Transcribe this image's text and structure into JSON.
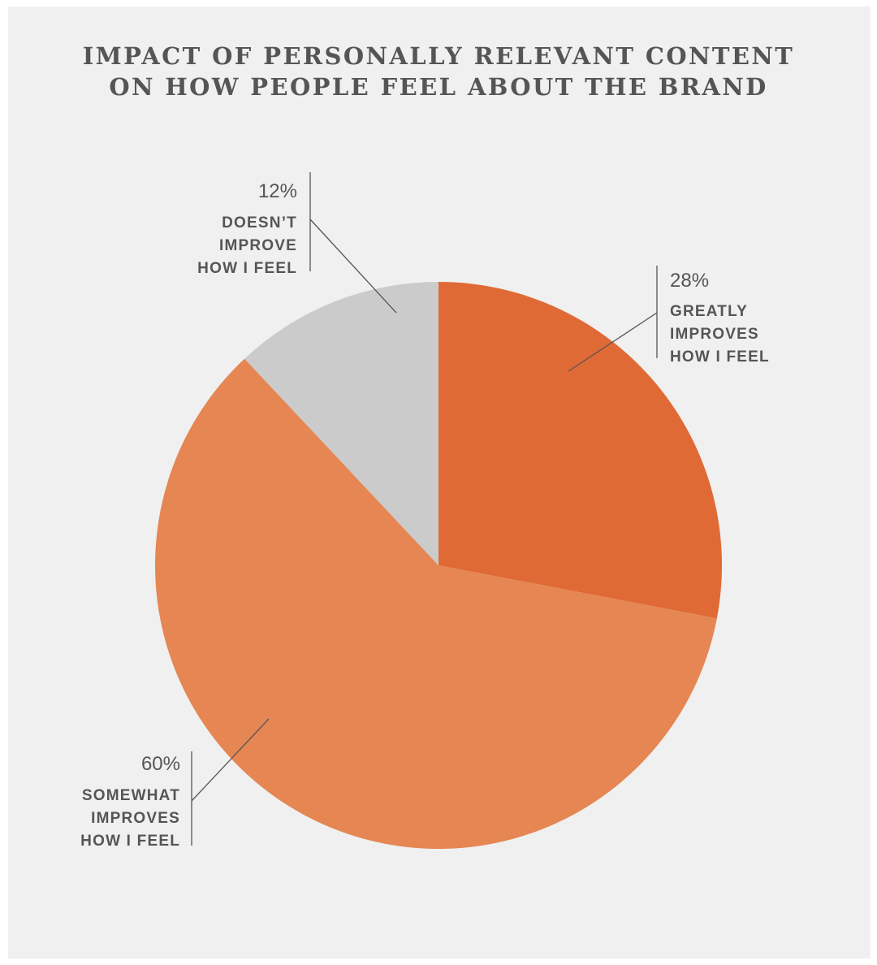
{
  "title_lines": [
    "IMPACT OF PERSONALLY RELEVANT CONTENT",
    "ON HOW PEOPLE FEEL ABOUT THE BRAND"
  ],
  "chart_data": {
    "type": "pie",
    "title": "IMPACT OF PERSONALLY RELEVANT CONTENT ON HOW PEOPLE FEEL ABOUT THE BRAND",
    "unit": "%",
    "slices": [
      {
        "label": "GREATLY IMPROVES HOW I FEEL",
        "label_lines": [
          "GREATLY",
          "IMPROVES",
          "HOW I FEEL"
        ],
        "value": 28,
        "value_label": "28%",
        "color": "#e06a35"
      },
      {
        "label": "SOMEWHAT IMPROVES HOW I FEEL",
        "label_lines": [
          "SOMEWHAT",
          "IMPROVES",
          "HOW I FEEL"
        ],
        "value": 60,
        "value_label": "60%",
        "color": "#e58653"
      },
      {
        "label": "DOESN'T IMPROVE HOW I FEEL",
        "label_lines": [
          "DOESN’T",
          "IMPROVE",
          "HOW I FEEL"
        ],
        "value": 12,
        "value_label": "12%",
        "color": "#cbcbcb"
      }
    ],
    "start_angle": "12 o'clock",
    "direction": "clockwise",
    "legend": "none"
  },
  "colors": {
    "background": "#eff0ef",
    "text": "#555555",
    "leader_line": "#555555"
  }
}
